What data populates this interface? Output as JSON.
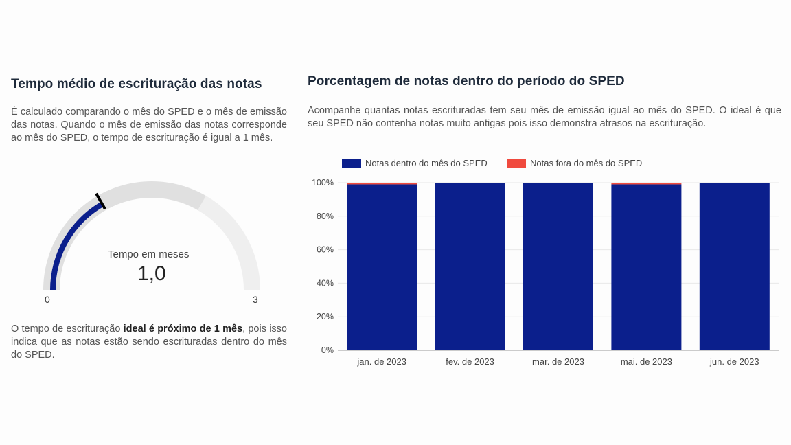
{
  "left": {
    "title": "Tempo médio de escrituração das notas",
    "description": "É calculado comparando o mês do SPED e o mês de emissão das notas. Quando o mês de emissão das notas corresponde ao mês do SPED, o tempo de escrituração é igual a 1 mês.",
    "gauge": {
      "label": "Tempo em meses",
      "value_text": "1,0",
      "value": 1.0,
      "min": 0,
      "max": 3,
      "min_label": "0",
      "max_label": "3",
      "target": 1.0,
      "band_split": 2.0,
      "colors": {
        "fill": "#0b1f8c",
        "band1": "#e0e0e0",
        "band2": "#efefef",
        "target": "#000000"
      }
    },
    "note": {
      "prefix": "O tempo de escrituração ",
      "bold": "ideal é próximo de 1 mês",
      "suffix": ", pois isso indica que as notas estão sendo escrituradas dentro do mês do SPED."
    }
  },
  "right": {
    "title": "Porcentagem de notas dentro do período do SPED",
    "description": "Acompanhe quantas notas escrituradas tem seu mês de emissão igual ao mês do SPED. O ideal é que seu SPED não contenha notas muito antigas pois isso demonstra atrasos na escrituração."
  },
  "chart_data": {
    "type": "bar",
    "stacked": true,
    "categories": [
      "jan. de 2023",
      "fev. de 2023",
      "mar. de 2023",
      "mai. de 2023",
      "jun. de 2023"
    ],
    "series": [
      {
        "name": "Notas dentro do mês do SPED",
        "values": [
          99,
          100,
          100,
          99,
          100
        ],
        "color": "#0b1f8c"
      },
      {
        "name": "Notas fora do mês do SPED",
        "values": [
          1,
          0,
          0,
          1,
          0
        ],
        "color": "#f04a3e"
      }
    ],
    "y_ticks": [
      0,
      20,
      40,
      60,
      80,
      100
    ],
    "y_tick_labels": [
      "0%",
      "20%",
      "40%",
      "60%",
      "80%",
      "100%"
    ],
    "ylim": [
      0,
      100
    ],
    "grid": true,
    "legend_position": "top-left"
  }
}
